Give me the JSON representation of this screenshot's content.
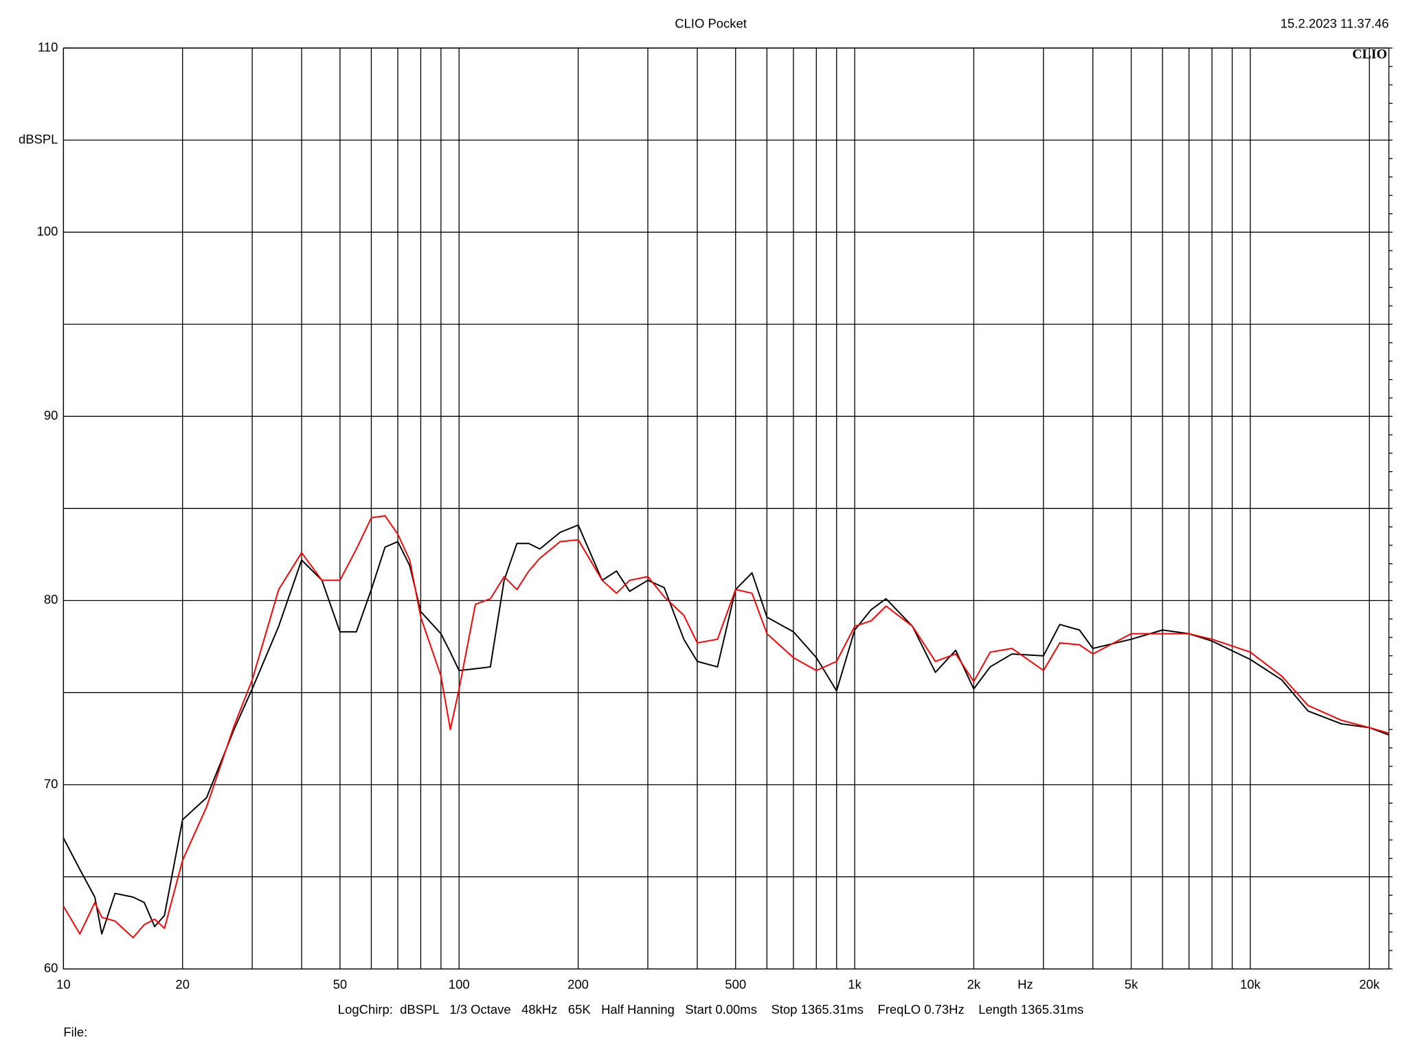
{
  "chart_data": {
    "type": "line",
    "title": "CLIO Pocket",
    "timestamp": "15.2.2023 11.37.46",
    "logo": "CLIO",
    "ylabel": "dBSPL",
    "xlabel": "Hz",
    "footer": "LogChirp:  dBSPL   1/3 Octave   48kHz   65K   Half Hanning   Start 0.00ms    Stop 1365.31ms    FreqLO 0.73Hz    Length 1365.31ms",
    "file_label": "File:",
    "xscale": "log",
    "grid": true,
    "xlim": [
      10,
      22400
    ],
    "ylim": [
      60,
      110
    ],
    "xticks": [
      10,
      20,
      50,
      100,
      200,
      500,
      {
        "value": 1000,
        "label": "1k"
      },
      {
        "value": 2000,
        "label": "2k"
      },
      {
        "value": 5000,
        "label": "5k"
      },
      {
        "value": 10000,
        "label": "10k"
      },
      {
        "value": 20000,
        "label": "20k"
      }
    ],
    "minor_xticks": [
      30,
      40,
      60,
      70,
      80,
      90,
      300,
      400,
      600,
      700,
      800,
      900,
      3000,
      4000,
      6000,
      7000,
      8000,
      9000
    ],
    "yticks": [
      60,
      70,
      80,
      90,
      100,
      110
    ],
    "minor_yticks": [
      65,
      75,
      85,
      95,
      105
    ],
    "x": [
      10,
      11,
      12,
      12.5,
      13.5,
      15,
      16,
      17,
      18,
      20,
      23,
      27,
      30,
      35,
      40,
      45,
      50,
      55,
      60,
      65,
      70,
      75,
      80,
      90,
      95,
      100,
      110,
      120,
      130,
      140,
      150,
      160,
      180,
      200,
      230,
      250,
      270,
      300,
      330,
      370,
      400,
      450,
      500,
      550,
      600,
      700,
      800,
      900,
      1000,
      1100,
      1200,
      1400,
      1600,
      1800,
      2000,
      2200,
      2500,
      3000,
      3300,
      3700,
      4000,
      5000,
      6000,
      7000,
      8000,
      10000,
      12000,
      14000,
      17000,
      20000,
      22400
    ],
    "series": [
      {
        "color": "#000000",
        "values": [
          67.1,
          65.4,
          63.9,
          61.9,
          64.1,
          63.9,
          63.6,
          62.3,
          62.9,
          68.1,
          69.3,
          73.0,
          75.2,
          78.6,
          82.2,
          81.1,
          78.3,
          78.3,
          80.6,
          82.9,
          83.2,
          81.9,
          79.4,
          78.2,
          77.2,
          76.2,
          76.3,
          76.4,
          81.1,
          83.1,
          83.1,
          82.8,
          83.7,
          84.1,
          81.1,
          81.6,
          80.5,
          81.1,
          80.7,
          77.9,
          76.7,
          76.4,
          80.6,
          81.5,
          79.1,
          78.3,
          76.9,
          75.1,
          78.4,
          79.5,
          80.1,
          78.6,
          76.1,
          77.3,
          75.2,
          76.4,
          77.1,
          77.0,
          78.7,
          78.4,
          77.4,
          77.9,
          78.4,
          78.2,
          77.8,
          76.8,
          75.7,
          74.0,
          73.3,
          73.1,
          72.7
        ]
      },
      {
        "color": "#ff0000",
        "values": [
          63.4,
          61.9,
          63.6,
          62.8,
          62.6,
          61.7,
          62.4,
          62.7,
          62.2,
          65.9,
          68.8,
          73.2,
          75.7,
          80.6,
          82.6,
          81.1,
          81.1,
          82.8,
          84.5,
          84.6,
          83.6,
          82.2,
          79.1,
          75.9,
          73.0,
          75.2,
          79.8,
          80.1,
          81.3,
          80.6,
          81.6,
          82.3,
          83.2,
          83.3,
          81.1,
          80.4,
          81.1,
          81.3,
          80.2,
          79.2,
          77.7,
          77.9,
          80.6,
          80.4,
          78.2,
          76.9,
          76.2,
          76.7,
          78.6,
          78.9,
          79.7,
          78.6,
          76.7,
          77.1,
          75.6,
          77.2,
          77.4,
          76.2,
          77.7,
          77.6,
          77.1,
          78.2,
          78.2,
          78.2,
          77.9,
          77.2,
          75.9,
          74.3,
          73.5,
          73.1,
          72.8
        ]
      }
    ]
  }
}
